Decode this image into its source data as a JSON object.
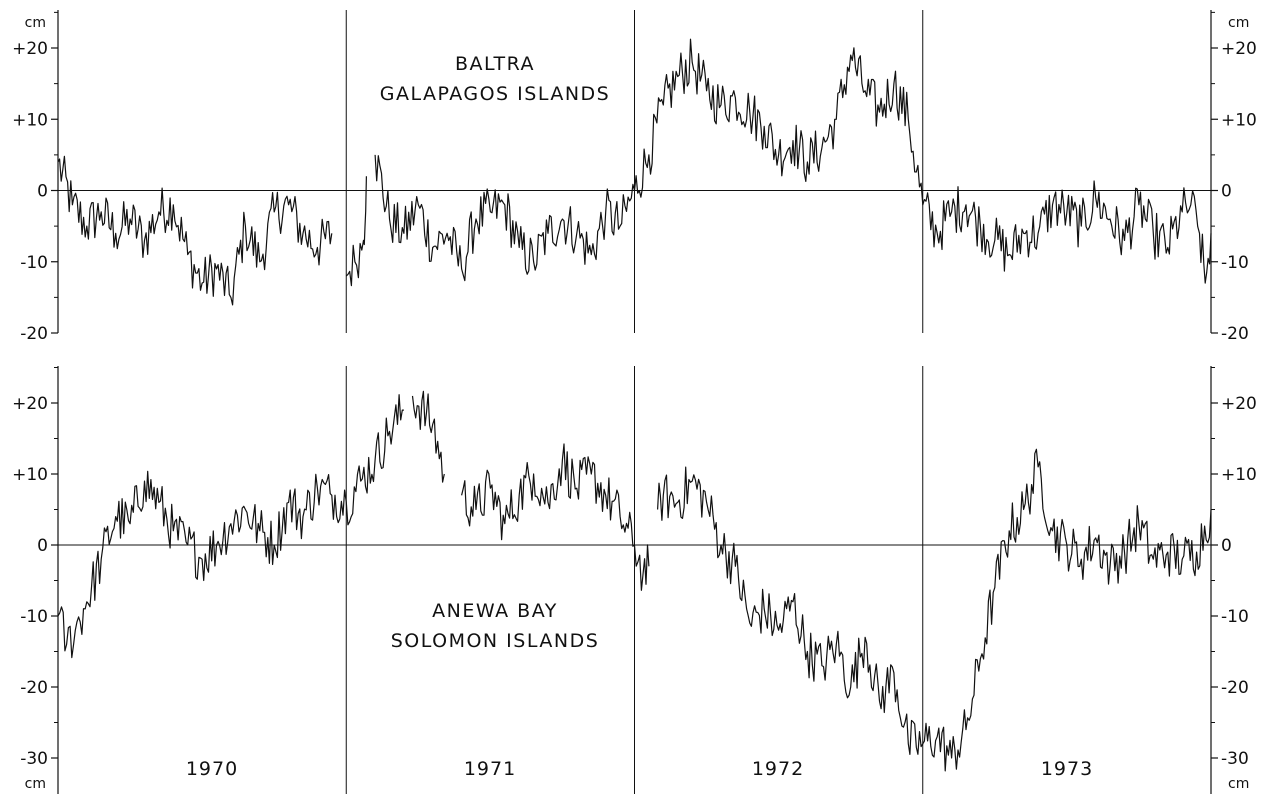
{
  "chart_data": [
    {
      "type": "line",
      "title": "BALTRA",
      "subtitle": "GALAPAGOS ISLANDS",
      "unit": "cm",
      "ylim": [
        -20,
        25
      ],
      "yticks": [
        -20,
        -10,
        0,
        10,
        20
      ],
      "ytick_labels_left": [
        "-20",
        "-10",
        "0",
        "+10",
        "+20"
      ],
      "ytick_labels_right": [
        "-20",
        "-10",
        "0",
        "+10",
        "+20"
      ],
      "xlim": [
        1970.0,
        1974.0
      ],
      "year_dividers": [
        1971,
        1972,
        1973
      ],
      "zero_line": true,
      "series": [
        {
          "gaps_after": [
            0.95,
            1.07
          ],
          "x": [
            1970.0,
            1970.05,
            1970.1,
            1970.15,
            1970.2,
            1970.25,
            1970.3,
            1970.35,
            1970.4,
            1970.45,
            1970.5,
            1970.55,
            1970.6,
            1970.65,
            1970.7,
            1970.75,
            1970.8,
            1970.85,
            1970.9,
            1970.95,
            1971.0,
            1971.03,
            1971.06,
            1971.07,
            1971.1,
            1971.15,
            1971.2,
            1971.25,
            1971.3,
            1971.35,
            1971.4,
            1971.45,
            1971.5,
            1971.55,
            1971.6,
            1971.65,
            1971.7,
            1971.75,
            1971.8,
            1971.85,
            1971.9,
            1971.95,
            1972.0,
            1972.05,
            1972.1,
            1972.15,
            1972.2,
            1972.25,
            1972.3,
            1972.35,
            1972.4,
            1972.45,
            1972.5,
            1972.55,
            1972.6,
            1972.65,
            1972.7,
            1972.75,
            1972.8,
            1972.85,
            1972.9,
            1972.95,
            1973.0,
            1973.05,
            1973.1,
            1973.15,
            1973.2,
            1973.25,
            1973.3,
            1973.35,
            1973.4,
            1973.45,
            1973.5,
            1973.55,
            1973.6,
            1973.65,
            1973.7,
            1973.75,
            1973.8,
            1973.85,
            1973.9,
            1973.93,
            1973.96,
            1973.98,
            1974.0
          ],
          "y": [
            4,
            -2,
            -5,
            -3,
            -6,
            -4,
            -7,
            -3,
            -2,
            -9,
            -13,
            -11,
            -15,
            -5,
            -10,
            -3,
            -2,
            -6,
            -8,
            -6,
            -12,
            -10,
            -7,
            2,
            5,
            -4,
            -6,
            -2,
            -8,
            -6,
            -11,
            -4,
            -3,
            -2,
            -8,
            -10,
            -6,
            -4,
            -6,
            -9,
            -3,
            -5,
            0,
            5,
            12,
            16,
            18,
            14,
            12,
            13,
            11,
            9,
            5,
            7,
            4,
            6,
            10,
            19,
            14,
            11,
            15,
            10,
            -2,
            -6,
            -3,
            -2,
            -5,
            -7,
            -9,
            -6,
            -6,
            -2,
            -3,
            -5,
            -1,
            -4,
            -7,
            -2,
            -6,
            -8,
            -3,
            -2,
            -6,
            -13,
            -6
          ]
        }
      ]
    },
    {
      "type": "line",
      "title": "ANEWA BAY",
      "subtitle": "SOLOMON ISLANDS",
      "unit": "cm",
      "ylim": [
        -32,
        25
      ],
      "yticks": [
        -30,
        -20,
        -10,
        0,
        10,
        20
      ],
      "ytick_labels_left": [
        "-30",
        "-20",
        "-10",
        "0",
        "+10",
        "+20"
      ],
      "ytick_labels_right": [
        "-30",
        "-20",
        "-10",
        "0",
        "+10",
        "+20"
      ],
      "xlim": [
        1970.0,
        1974.0
      ],
      "year_dividers": [
        1971,
        1972,
        1973
      ],
      "zero_line": true,
      "series": [
        {
          "gaps_after": [
            1.2,
            1.34,
            2.05
          ],
          "x": [
            1970.0,
            1970.03,
            1970.06,
            1970.1,
            1970.15,
            1970.2,
            1970.25,
            1970.3,
            1970.35,
            1970.4,
            1970.45,
            1970.5,
            1970.55,
            1970.6,
            1970.65,
            1970.7,
            1970.75,
            1970.8,
            1970.85,
            1970.9,
            1970.95,
            1971.0,
            1971.05,
            1971.1,
            1971.15,
            1971.2,
            1971.23,
            1971.3,
            1971.34,
            1971.4,
            1971.45,
            1971.5,
            1971.55,
            1971.6,
            1971.65,
            1971.7,
            1971.75,
            1971.8,
            1971.85,
            1971.9,
            1971.95,
            1972.0,
            1972.03,
            1972.05,
            1972.08,
            1972.1,
            1972.15,
            1972.2,
            1972.25,
            1972.3,
            1972.35,
            1972.4,
            1972.45,
            1972.5,
            1972.55,
            1972.6,
            1972.65,
            1972.7,
            1972.75,
            1972.8,
            1972.85,
            1972.9,
            1972.95,
            1973.0,
            1973.05,
            1973.1,
            1973.15,
            1973.2,
            1973.25,
            1973.3,
            1973.35,
            1973.4,
            1973.45,
            1973.5,
            1973.55,
            1973.6,
            1973.65,
            1973.7,
            1973.75,
            1973.8,
            1973.85,
            1973.9,
            1973.95,
            1974.0
          ],
          "y": [
            -10,
            -14,
            -12,
            -8,
            -2,
            4,
            3,
            9,
            6,
            2,
            0,
            -2,
            0,
            3,
            5,
            2,
            0,
            6,
            4,
            8,
            7,
            6,
            9,
            12,
            16,
            19,
            21,
            17,
            10,
            7,
            5,
            8,
            3,
            7,
            10,
            6,
            12,
            8,
            10,
            7,
            4,
            0,
            -4,
            -3,
            5,
            7,
            6,
            9,
            6,
            0,
            -3,
            -11,
            -9,
            -12,
            -8,
            -15,
            -17,
            -14,
            -20,
            -13,
            -22,
            -18,
            -28,
            -28,
            -27,
            -30,
            -26,
            -16,
            -6,
            2,
            5,
            11,
            2,
            0,
            -2,
            1,
            -3,
            -1,
            3,
            -2,
            -1,
            -2,
            -1,
            5
          ]
        }
      ]
    },
    {
      "type": "axis",
      "year_labels": [
        "1970",
        "1971",
        "1972",
        "1973"
      ]
    }
  ]
}
